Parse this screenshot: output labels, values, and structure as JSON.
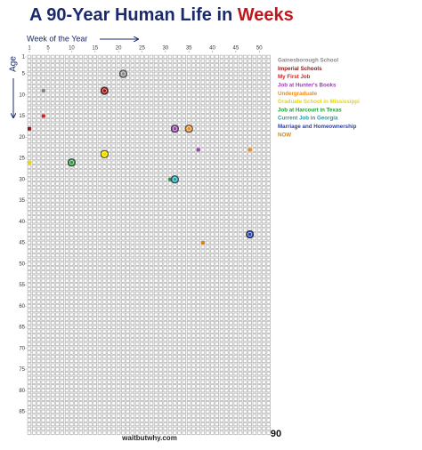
{
  "chart_data": {
    "type": "life-grid",
    "title": {
      "text": "A 90-Year Human Life in ",
      "highlight": "Weeks"
    },
    "x_label": "Week of the Year",
    "y_label": "Age",
    "xlim": [
      1,
      52
    ],
    "ylim": [
      1,
      90
    ],
    "xticks": [
      1,
      5,
      10,
      15,
      20,
      25,
      30,
      35,
      40,
      45,
      50
    ],
    "yticks": [
      1,
      5,
      10,
      15,
      20,
      25,
      30,
      35,
      40,
      45,
      50,
      55,
      60,
      65,
      70,
      75,
      80,
      85
    ],
    "final_age": 90,
    "source": "waitbutwhy.com",
    "series": [
      {
        "name": "Gainesborough School",
        "color": "#8a8a8a"
      },
      {
        "name": "Imperial Schools",
        "color": "#8b1a1a"
      },
      {
        "name": "My First Job",
        "color": "#e02020"
      },
      {
        "name": "Job at Hunter's Books",
        "color": "#9b3fb5"
      },
      {
        "name": "Undergraduate",
        "color": "#f08a1c"
      },
      {
        "name": "Graduate School in Mississippi",
        "color": "#e6d800"
      },
      {
        "name": "Job at Harcourt in Texas",
        "color": "#2a9a3a"
      },
      {
        "name": "Current Job in Georgia",
        "color": "#1aa0b0"
      },
      {
        "name": "Marriage and Homeownership",
        "color": "#2a3fb0"
      },
      {
        "name": "NOW",
        "color": "#d08a20"
      }
    ],
    "events": [
      {
        "series": 0,
        "week": 21,
        "age": 5,
        "marker": "circle"
      },
      {
        "series": 0,
        "week": 4,
        "age": 9,
        "marker": "square"
      },
      {
        "series": 1,
        "week": 17,
        "age": 9,
        "marker": "circle"
      },
      {
        "series": 2,
        "week": 4,
        "age": 15,
        "marker": "square"
      },
      {
        "series": 1,
        "week": 1,
        "age": 18,
        "marker": "square"
      },
      {
        "series": 3,
        "week": 32,
        "age": 18,
        "marker": "circle"
      },
      {
        "series": 4,
        "week": 35,
        "age": 18,
        "marker": "circle"
      },
      {
        "series": 3,
        "week": 37,
        "age": 23,
        "marker": "square"
      },
      {
        "series": 4,
        "week": 48,
        "age": 23,
        "marker": "square"
      },
      {
        "series": 5,
        "week": 17,
        "age": 24,
        "marker": "circle"
      },
      {
        "series": 5,
        "week": 1,
        "age": 26,
        "marker": "square"
      },
      {
        "series": 6,
        "week": 10,
        "age": 26,
        "marker": "circle"
      },
      {
        "series": 6,
        "week": 31,
        "age": 30,
        "marker": "square"
      },
      {
        "series": 7,
        "week": 32,
        "age": 30,
        "marker": "circle"
      },
      {
        "series": 8,
        "week": 48,
        "age": 43,
        "marker": "circle"
      },
      {
        "series": 9,
        "week": 38,
        "age": 45,
        "marker": "square"
      }
    ]
  }
}
